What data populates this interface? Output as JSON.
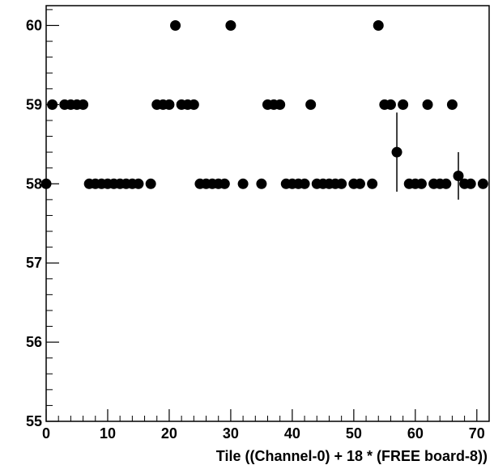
{
  "chart_data": {
    "type": "scatter",
    "xlabel": "Tile ((Channel-0) + 18 * (FREE board-8))",
    "ylabel": "",
    "xlim": [
      0,
      72
    ],
    "ylim": [
      55,
      60.25
    ],
    "x_ticks": [
      0,
      10,
      20,
      30,
      40,
      50,
      60,
      70
    ],
    "y_ticks": [
      55,
      56,
      57,
      58,
      59,
      60
    ],
    "grid": false,
    "series": [
      {
        "points": [
          {
            "x": 0,
            "y": 58
          },
          {
            "x": 1,
            "y": 59
          },
          {
            "x": 3,
            "y": 59
          },
          {
            "x": 4,
            "y": 59
          },
          {
            "x": 5,
            "y": 59
          },
          {
            "x": 6,
            "y": 59
          },
          {
            "x": 7,
            "y": 58
          },
          {
            "x": 8,
            "y": 58
          },
          {
            "x": 9,
            "y": 58
          },
          {
            "x": 10,
            "y": 58
          },
          {
            "x": 11,
            "y": 58
          },
          {
            "x": 12,
            "y": 58
          },
          {
            "x": 13,
            "y": 58
          },
          {
            "x": 14,
            "y": 58
          },
          {
            "x": 15,
            "y": 58
          },
          {
            "x": 17,
            "y": 58
          },
          {
            "x": 18,
            "y": 59
          },
          {
            "x": 19,
            "y": 59
          },
          {
            "x": 20,
            "y": 59
          },
          {
            "x": 21,
            "y": 60
          },
          {
            "x": 22,
            "y": 59
          },
          {
            "x": 23,
            "y": 59
          },
          {
            "x": 24,
            "y": 59
          },
          {
            "x": 25,
            "y": 58
          },
          {
            "x": 26,
            "y": 58
          },
          {
            "x": 27,
            "y": 58
          },
          {
            "x": 28,
            "y": 58
          },
          {
            "x": 29,
            "y": 58
          },
          {
            "x": 30,
            "y": 60
          },
          {
            "x": 32,
            "y": 58
          },
          {
            "x": 35,
            "y": 58
          },
          {
            "x": 36,
            "y": 59
          },
          {
            "x": 37,
            "y": 59
          },
          {
            "x": 38,
            "y": 59
          },
          {
            "x": 39,
            "y": 58
          },
          {
            "x": 40,
            "y": 58
          },
          {
            "x": 41,
            "y": 58
          },
          {
            "x": 42,
            "y": 58
          },
          {
            "x": 43,
            "y": 59
          },
          {
            "x": 44,
            "y": 58
          },
          {
            "x": 45,
            "y": 58
          },
          {
            "x": 46,
            "y": 58
          },
          {
            "x": 47,
            "y": 58
          },
          {
            "x": 48,
            "y": 58
          },
          {
            "x": 50,
            "y": 58
          },
          {
            "x": 51,
            "y": 58
          },
          {
            "x": 53,
            "y": 58
          },
          {
            "x": 54,
            "y": 60
          },
          {
            "x": 55,
            "y": 59
          },
          {
            "x": 56,
            "y": 59
          },
          {
            "x": 57,
            "y": 58.4,
            "err_low": 57.9,
            "err_high": 58.9
          },
          {
            "x": 58,
            "y": 59
          },
          {
            "x": 59,
            "y": 58
          },
          {
            "x": 60,
            "y": 58
          },
          {
            "x": 61,
            "y": 58
          },
          {
            "x": 62,
            "y": 59
          },
          {
            "x": 63,
            "y": 58
          },
          {
            "x": 64,
            "y": 58
          },
          {
            "x": 65,
            "y": 58
          },
          {
            "x": 66,
            "y": 59
          },
          {
            "x": 67,
            "y": 58.1,
            "err_low": 57.8,
            "err_high": 58.4
          },
          {
            "x": 68,
            "y": 58
          },
          {
            "x": 69,
            "y": 58
          },
          {
            "x": 71,
            "y": 58
          }
        ]
      }
    ]
  }
}
